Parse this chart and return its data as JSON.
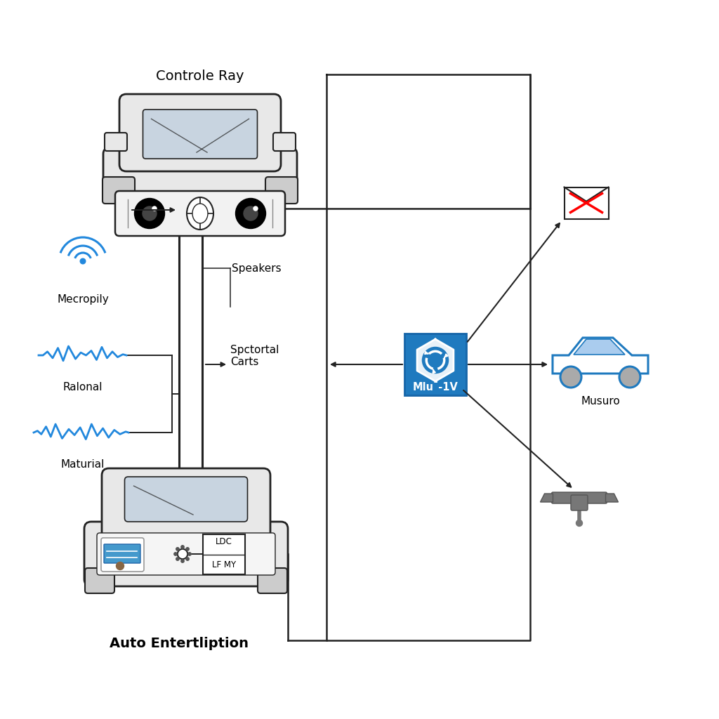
{
  "background_color": "#ffffff",
  "title_top_car": "Controle Ray",
  "title_bottom_car": "Auto Entertliption",
  "label_speakers": "Speakers",
  "label_spectoral": "Spctortal\nCarts",
  "label_mecropily": "Mecropily",
  "label_ralonal": "Ralonal",
  "label_maturial": "Maturial",
  "label_musuro": "Musuro",
  "label_mlu": "Mlu¯-1V",
  "label_ldc": "LDC",
  "label_lfmy": "LF MY",
  "blue_color": "#1f7abf",
  "dark_blue_box": "#1565a8",
  "car_body_color": "#e0e0e0",
  "car_outline": "#222222",
  "line_color": "#222222",
  "signal_color": "#2288dd",
  "sensor_bar_color": "#f0f0f0"
}
